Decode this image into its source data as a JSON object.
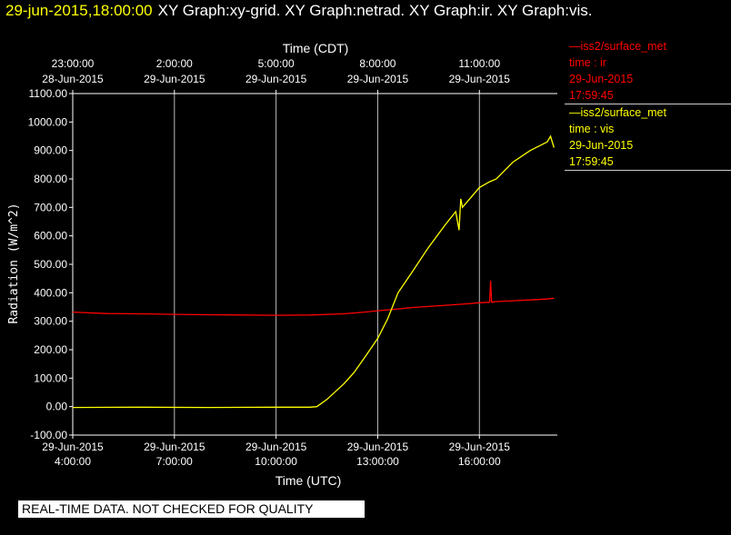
{
  "header": {
    "timestamp": "29-jun-2015,18:00:00",
    "graphs": "XY Graph:xy-grid.  XY Graph:netrad.  XY Graph:ir.  XY Graph:vis."
  },
  "legend": [
    {
      "label": "—iss2/surface_met",
      "field": "time : ir",
      "date": "29-Jun-2015",
      "time": "17:59:45",
      "color": "#ff0000"
    },
    {
      "label": "—iss2/surface_met",
      "field": "time : vis",
      "date": "29-Jun-2015",
      "time": "17:59:45",
      "color": "#ffff00"
    }
  ],
  "banner": "REAL-TIME DATA. NOT CHECKED FOR QUALITY",
  "chart_data": {
    "type": "line",
    "xlabel_bottom": "Time (UTC)",
    "xlabel_top": "Time (CDT)",
    "ylabel": "Radiation (W/m^2)",
    "ylim": [
      -100,
      1100
    ],
    "xlim_hours_utc": [
      4.0,
      18.3
    ],
    "grid": true,
    "y_ticks": [
      "-100.00",
      "0.00",
      "100.00",
      "200.00",
      "300.00",
      "400.00",
      "500.00",
      "600.00",
      "700.00",
      "800.00",
      "900.00",
      "1000.00",
      "1100.00"
    ],
    "bottom_ticks": [
      {
        "date": "29-Jun-2015",
        "time": "4:00:00"
      },
      {
        "date": "29-Jun-2015",
        "time": "7:00:00"
      },
      {
        "date": "29-Jun-2015",
        "time": "10:00:00"
      },
      {
        "date": "29-Jun-2015",
        "time": "13:00:00"
      },
      {
        "date": "29-Jun-2015",
        "time": "16:00:00"
      }
    ],
    "top_ticks": [
      {
        "time": "23:00:00",
        "date": "28-Jun-2015"
      },
      {
        "time": "2:00:00",
        "date": "29-Jun-2015"
      },
      {
        "time": "5:00:00",
        "date": "29-Jun-2015"
      },
      {
        "time": "8:00:00",
        "date": "29-Jun-2015"
      },
      {
        "time": "11:00:00",
        "date": "29-Jun-2015"
      }
    ],
    "series": [
      {
        "name": "time : ir",
        "color": "#ff0000",
        "x": [
          4.0,
          5.0,
          6.0,
          7.0,
          8.0,
          9.0,
          10.0,
          11.0,
          12.0,
          12.5,
          13.0,
          13.5,
          14.0,
          14.5,
          15.0,
          15.5,
          16.0,
          16.3,
          16.33,
          16.36,
          16.5,
          17.0,
          17.5,
          18.0,
          18.2
        ],
        "y": [
          332,
          327,
          326,
          324,
          323,
          322,
          321,
          322,
          326,
          331,
          337,
          342,
          348,
          352,
          356,
          360,
          365,
          367,
          442,
          367,
          369,
          372,
          375,
          378,
          381
        ]
      },
      {
        "name": "time : vis",
        "color": "#ffff00",
        "x": [
          4.0,
          6.0,
          8.0,
          10.0,
          11.0,
          11.2,
          11.5,
          12.0,
          12.3,
          12.6,
          13.0,
          13.3,
          13.6,
          14.0,
          14.5,
          15.0,
          15.3,
          15.4,
          15.45,
          15.5,
          16.0,
          16.3,
          16.5,
          17.0,
          17.5,
          18.0,
          18.1,
          18.2
        ],
        "y": [
          -3,
          -2,
          -3,
          -2,
          -2,
          0,
          25,
          80,
          120,
          170,
          240,
          310,
          400,
          470,
          560,
          640,
          685,
          620,
          730,
          700,
          770,
          790,
          800,
          860,
          900,
          930,
          950,
          910
        ]
      }
    ]
  }
}
